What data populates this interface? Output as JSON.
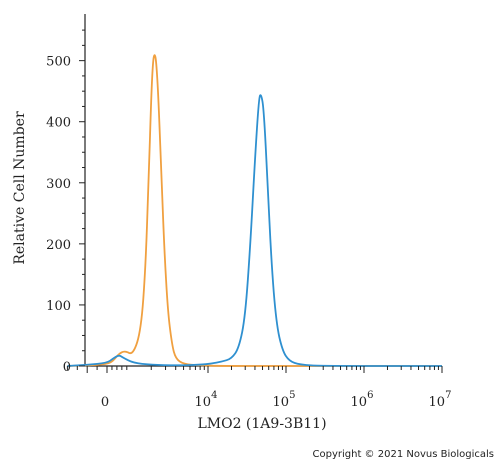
{
  "chart_data": {
    "type": "area",
    "xlabel": "LMO2 (1A9-3B11)",
    "ylabel": "Relative Cell Number",
    "ylim": [
      0,
      560
    ],
    "x_scale": "biexponential",
    "y_ticks": [
      0,
      100,
      200,
      300,
      400,
      500
    ],
    "y_tick_labels": [
      "0",
      "100",
      "200",
      "300",
      "400",
      "500"
    ],
    "x_ticks": [
      0,
      10000,
      100000,
      1000000,
      10000000
    ],
    "x_tick_labels": [
      {
        "base": "0",
        "exp": ""
      },
      {
        "base": "10",
        "exp": "4"
      },
      {
        "base": "10",
        "exp": "5"
      },
      {
        "base": "10",
        "exp": "6"
      },
      {
        "base": "10",
        "exp": "7"
      }
    ],
    "grid": false,
    "series": [
      {
        "color": "#f0a040",
        "points": [
          [
            -2000,
            0
          ],
          [
            -1000,
            1
          ],
          [
            0,
            3
          ],
          [
            300,
            8
          ],
          [
            600,
            20
          ],
          [
            900,
            25
          ],
          [
            1200,
            18
          ],
          [
            1500,
            60
          ],
          [
            1700,
            160
          ],
          [
            1850,
            300
          ],
          [
            2000,
            440
          ],
          [
            2100,
            500
          ],
          [
            2200,
            512
          ],
          [
            2300,
            500
          ],
          [
            2450,
            440
          ],
          [
            2650,
            320
          ],
          [
            2900,
            190
          ],
          [
            3200,
            90
          ],
          [
            3600,
            35
          ],
          [
            4000,
            12
          ],
          [
            5000,
            3
          ],
          [
            8000,
            1
          ],
          [
            15000,
            0
          ],
          [
            100000,
            0
          ],
          [
            10000000,
            0
          ]
        ]
      },
      {
        "color": "#2f90d0",
        "points": [
          [
            -2000,
            0
          ],
          [
            -1000,
            2
          ],
          [
            0,
            5
          ],
          [
            300,
            12
          ],
          [
            600,
            18
          ],
          [
            800,
            14
          ],
          [
            1200,
            5
          ],
          [
            2000,
            2
          ],
          [
            4000,
            1
          ],
          [
            8000,
            2
          ],
          [
            11000,
            4
          ],
          [
            15000,
            7
          ],
          [
            20000,
            12
          ],
          [
            25000,
            30
          ],
          [
            30000,
            80
          ],
          [
            35000,
            200
          ],
          [
            40000,
            340
          ],
          [
            45000,
            440
          ],
          [
            48000,
            446
          ],
          [
            52000,
            420
          ],
          [
            58000,
            300
          ],
          [
            65000,
            170
          ],
          [
            75000,
            70
          ],
          [
            90000,
            25
          ],
          [
            110000,
            8
          ],
          [
            150000,
            2
          ],
          [
            300000,
            0
          ],
          [
            10000000,
            0
          ]
        ]
      }
    ]
  },
  "copyright": "Copyright © 2021 Novus Biologicals"
}
